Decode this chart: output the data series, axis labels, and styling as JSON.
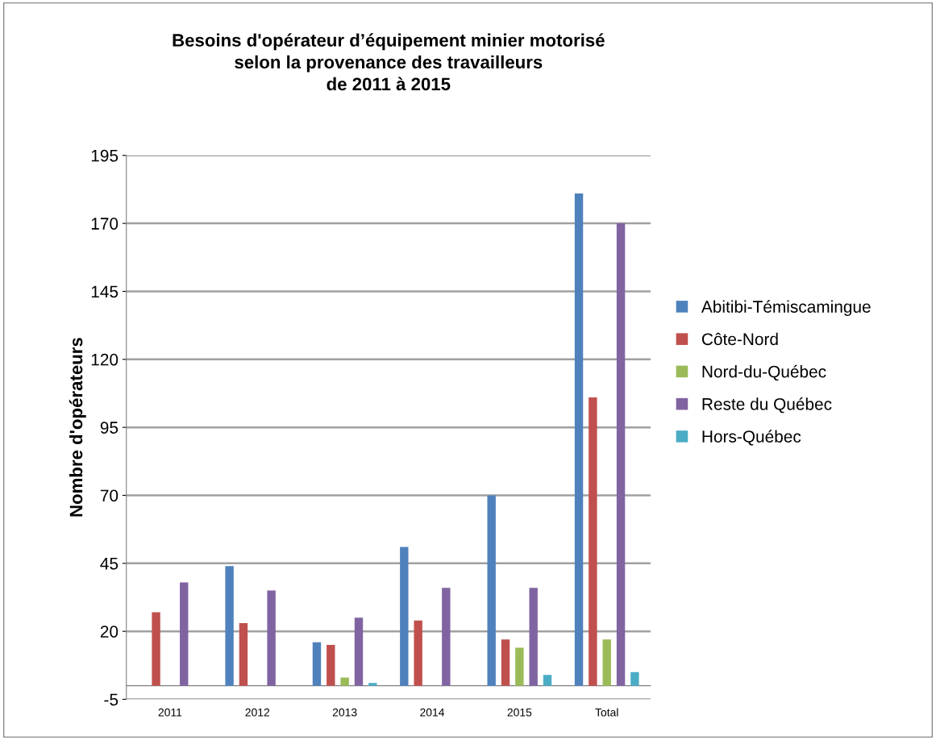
{
  "chart_data": {
    "type": "bar",
    "title": "Besoins d'opérateur d’équipement minier motorisé\nselon la provenance des travailleurs\nde 2011 à 2015",
    "ylabel": "Nombre d'opérateurs",
    "categories": [
      "2011",
      "2012",
      "2013",
      "2014",
      "2015",
      "Total"
    ],
    "series": [
      {
        "name": "Abitibi-Témiscamingue",
        "color": "#4f81bd",
        "values": [
          0,
          44,
          16,
          51,
          70,
          181
        ]
      },
      {
        "name": "Côte-Nord",
        "color": "#c0504d",
        "values": [
          27,
          23,
          15,
          24,
          17,
          106
        ]
      },
      {
        "name": "Nord-du-Québec",
        "color": "#9bbb59",
        "values": [
          0,
          0,
          3,
          0,
          14,
          17
        ]
      },
      {
        "name": "Reste du Québec",
        "color": "#8064a2",
        "values": [
          38,
          35,
          25,
          36,
          36,
          170
        ]
      },
      {
        "name": "Hors-Québec",
        "color": "#4bacc6",
        "values": [
          0,
          0,
          1,
          0,
          4,
          5
        ]
      }
    ],
    "ylim": [
      -5,
      195
    ],
    "yticks": [
      -5,
      20,
      45,
      70,
      95,
      120,
      145,
      170,
      195
    ],
    "grid": "y",
    "legend": "right"
  }
}
